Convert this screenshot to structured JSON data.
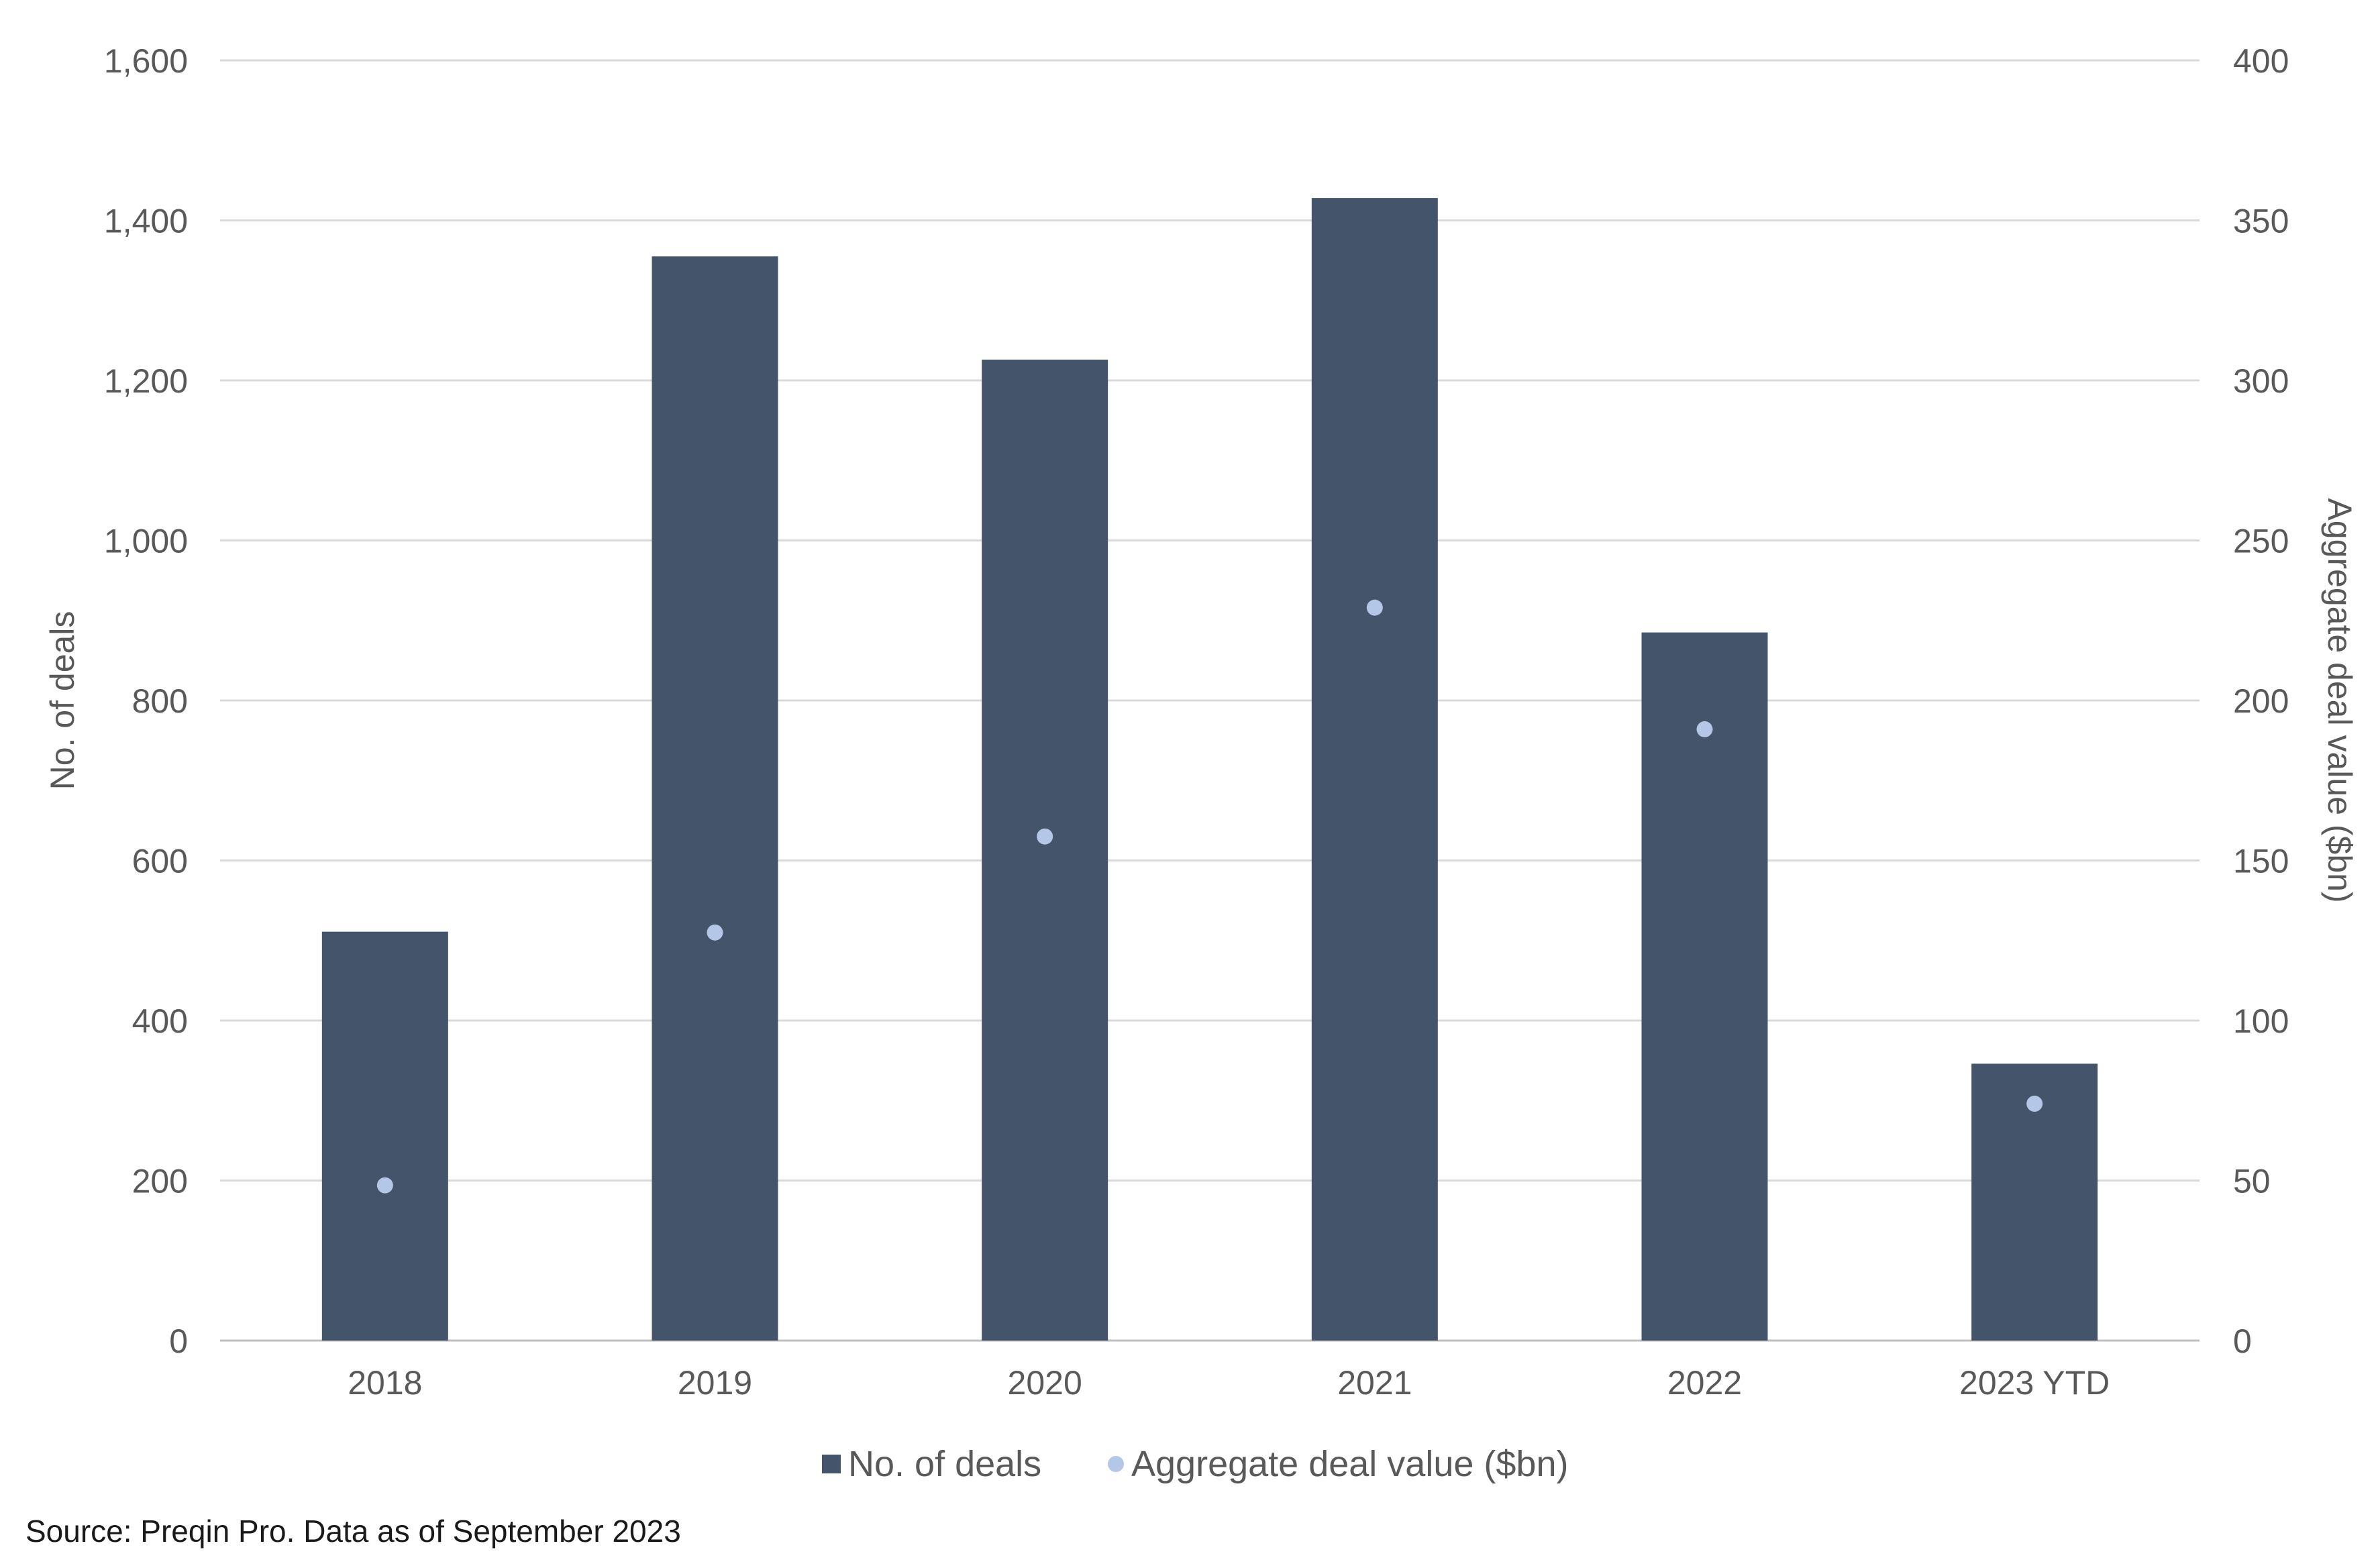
{
  "chart_data": {
    "type": "bar",
    "categories": [
      "2018",
      "2019",
      "2020",
      "2021",
      "2022",
      "2023 YTD"
    ],
    "series": [
      {
        "name": "No. of deals",
        "type": "bar",
        "axis": "left",
        "color": "#44546a",
        "values": [
          511,
          1355,
          1226,
          1428,
          885,
          346
        ]
      },
      {
        "name": "Aggregate deal value ($bn)",
        "type": "scatter",
        "axis": "right",
        "color": "#b4c7e7",
        "values": [
          48.5,
          127.5,
          157.5,
          229,
          191,
          74
        ]
      }
    ],
    "ylabel": "No. of deals",
    "ylabel_right": "Aggregate deal value ($bn)",
    "ylim": [
      0,
      1600
    ],
    "ylim_right": [
      0,
      400
    ],
    "yticks": [
      "0",
      "200",
      "400",
      "600",
      "800",
      "1,000",
      "1,200",
      "1,400",
      "1,600"
    ],
    "yticks_right": [
      "0",
      "50",
      "100",
      "150",
      "200",
      "250",
      "300",
      "350",
      "400"
    ],
    "grid": true,
    "legend": "bottom-center"
  },
  "footer": {
    "source": "Source: Preqin Pro. Data as of September 2023"
  }
}
